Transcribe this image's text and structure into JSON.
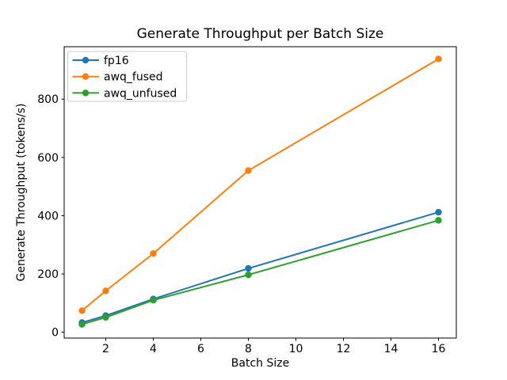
{
  "figure": {
    "title": "Generate Throughput per Batch Size",
    "xlabel": "Batch Size",
    "ylabel": "Generate Throughput (tokens/s)"
  },
  "chart_data": {
    "type": "line",
    "title": "Generate Throughput per Batch Size",
    "xlabel": "Batch Size",
    "ylabel": "Generate Throughput (tokens/s)",
    "x": [
      1,
      2,
      4,
      8,
      16
    ],
    "series": [
      {
        "name": "fp16",
        "color": "#1f77b4",
        "values": [
          33,
          57,
          114,
          219,
          412
        ]
      },
      {
        "name": "awq_fused",
        "color": "#ff7f0e",
        "values": [
          74,
          142,
          270,
          555,
          938
        ]
      },
      {
        "name": "awq_unfused",
        "color": "#2ca02c",
        "values": [
          27,
          51,
          110,
          197,
          384
        ]
      }
    ],
    "xticks": [
      2,
      4,
      6,
      8,
      10,
      12,
      14,
      16
    ],
    "yticks": [
      0,
      200,
      400,
      600,
      800
    ],
    "xlim": [
      0.25,
      16.75
    ],
    "ylim": [
      -20,
      980
    ],
    "marker": "o",
    "grid": false,
    "legend": {
      "position": "upper left",
      "entries": [
        "fp16",
        "awq_fused",
        "awq_unfused"
      ],
      "border_color": "#cccccc",
      "background_color": "#ffffff"
    },
    "axis_color": "#000000",
    "background_color": "#ffffff"
  }
}
